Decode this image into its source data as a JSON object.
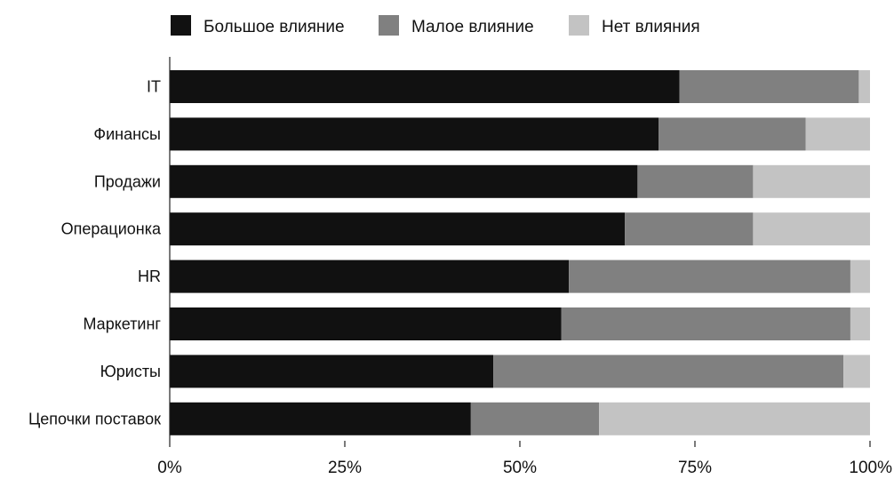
{
  "chart_data": {
    "type": "bar",
    "orientation": "horizontal",
    "stacked": true,
    "normalized": true,
    "legend_position": "top",
    "grid": false,
    "categories": [
      "IT",
      "Финансы",
      "Продажи",
      "Операционка",
      "HR",
      "Маркетинг",
      "Юристы",
      "Цепочки поставок"
    ],
    "series": [
      {
        "name": "Большое влияние",
        "color": "#111111",
        "values": [
          72.8,
          69.8,
          66.8,
          65.0,
          57.0,
          55.9,
          46.2,
          43.0
        ]
      },
      {
        "name": "Малое влияние",
        "color": "#808080",
        "values": [
          25.6,
          21.0,
          16.5,
          18.3,
          40.2,
          41.3,
          50.0,
          18.3
        ]
      },
      {
        "name": "Нет влияния",
        "color": "#c3c3c3",
        "values": [
          1.6,
          9.2,
          16.7,
          16.7,
          2.8,
          2.8,
          3.8,
          38.7
        ]
      }
    ],
    "xlim": [
      0,
      100
    ],
    "xticks": [
      0,
      25,
      50,
      75,
      100
    ],
    "xtick_labels": [
      "0%",
      "25%",
      "50%",
      "75%",
      "100%"
    ],
    "title": "",
    "xlabel": "",
    "ylabel": ""
  }
}
